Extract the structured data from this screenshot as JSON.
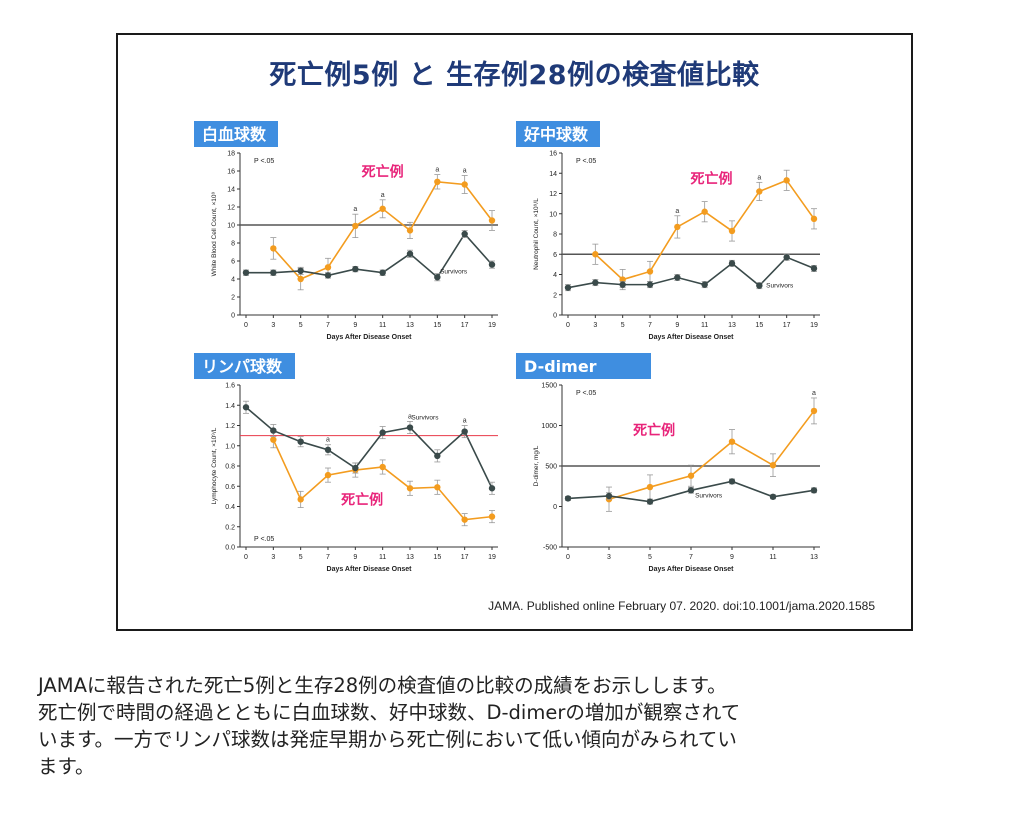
{
  "slide": {
    "title": "死亡例5例 と 生存例28例の検査値比較",
    "citation": "JAMA. Published online  February 07. 2020. doi:10.1001/jama.2020.1585"
  },
  "caption": [
    "JAMAに報告された死亡5例と生存28例の検査値の比較の成績をお示しします。",
    "死亡例で時間の経過とともに白血球数、好中球数、D-dimerの増加が観察されて",
    "います。一方でリンパ球数は発症早期から死亡例において低い傾向がみられてい",
    "ます。"
  ],
  "colors": {
    "title": "#1f3a78",
    "label_bg": "#3f8ee0",
    "nonsurvivors": "#f39c1f",
    "survivors": "#3a4a4a",
    "nonsurvivor_label": "#e8247a",
    "reference_line": "#555555",
    "reference_line_lymph": "#e83a4a"
  },
  "chart_data": [
    {
      "id": "wbc",
      "type": "line",
      "label": "白血球数",
      "ylabel": "White Blood Cell Count, ×10⁹",
      "xlabel": "Days After Disease Onset",
      "ylim": [
        0,
        18
      ],
      "yticks": [
        0,
        2,
        4,
        6,
        8,
        10,
        12,
        14,
        16,
        18
      ],
      "xticks": [
        0,
        3,
        5,
        7,
        9,
        11,
        13,
        15,
        17,
        19
      ],
      "pnote": "P <.05",
      "reference_line": 10,
      "series": [
        {
          "name": "死亡例",
          "role": "nonsurvivors",
          "x": [
            3,
            5,
            7,
            9,
            11,
            13,
            15,
            17,
            19
          ],
          "values": [
            7.4,
            4.0,
            5.3,
            9.9,
            11.8,
            9.4,
            14.8,
            14.5,
            10.5
          ],
          "err": [
            1.2,
            1.2,
            1.0,
            1.3,
            1.0,
            0.9,
            0.8,
            1.0,
            1.1
          ]
        },
        {
          "name": "Survivors",
          "role": "survivors",
          "x": [
            0,
            3,
            5,
            7,
            9,
            11,
            13,
            15,
            17,
            19
          ],
          "values": [
            4.7,
            4.7,
            4.9,
            4.4,
            5.1,
            4.7,
            6.8,
            4.2,
            9.0,
            5.6
          ],
          "err": [
            0.3,
            0.3,
            0.4,
            0.3,
            0.3,
            0.3,
            0.4,
            0.4,
            0.4,
            0.4
          ]
        }
      ],
      "significance_markers": [
        9,
        11,
        15,
        17
      ],
      "nonsurvivor_label_pos": [
        11,
        15.4
      ],
      "survivor_label_pos": [
        15.2,
        4.6
      ]
    },
    {
      "id": "neutrophil",
      "type": "line",
      "label": "好中球数",
      "ylabel": "Neutrophil Count, ×10⁹/L",
      "xlabel": "Days After Disease Onset",
      "ylim": [
        0,
        16
      ],
      "yticks": [
        0,
        2,
        4,
        6,
        8,
        10,
        12,
        14,
        16
      ],
      "xticks": [
        0,
        3,
        5,
        7,
        9,
        11,
        13,
        15,
        17,
        19
      ],
      "pnote": "P <.05",
      "reference_line": 6,
      "series": [
        {
          "name": "死亡例",
          "role": "nonsurvivors",
          "x": [
            3,
            5,
            7,
            9,
            11,
            13,
            15,
            17,
            19
          ],
          "values": [
            6.0,
            3.5,
            4.3,
            8.7,
            10.2,
            8.3,
            12.2,
            13.3,
            9.5
          ],
          "err": [
            1.0,
            1.0,
            1.0,
            1.1,
            1.0,
            1.0,
            0.9,
            1.0,
            1.0
          ]
        },
        {
          "name": "Survivors",
          "role": "survivors",
          "x": [
            0,
            3,
            5,
            7,
            9,
            11,
            13,
            15,
            17,
            19
          ],
          "values": [
            2.7,
            3.2,
            3.0,
            3.0,
            3.7,
            3.0,
            5.1,
            2.9,
            5.7,
            4.6
          ],
          "err": [
            0.3,
            0.3,
            0.3,
            0.3,
            0.3,
            0.3,
            0.3,
            0.3,
            0.3,
            0.3
          ]
        }
      ],
      "significance_markers": [
        9,
        15
      ],
      "nonsurvivor_label_pos": [
        11.5,
        13.0
      ],
      "survivor_label_pos": [
        15.5,
        2.7
      ]
    },
    {
      "id": "lymphocyte",
      "type": "line",
      "label": "リンパ球数",
      "ylabel": "Lymphocyte Count, ×10⁹/L",
      "xlabel": "Days After Disease Onset",
      "ylim": [
        0,
        1.6
      ],
      "yticks": [
        0,
        0.2,
        0.4,
        0.6,
        0.8,
        1.0,
        1.2,
        1.4,
        1.6
      ],
      "xticks": [
        0,
        3,
        5,
        7,
        9,
        11,
        13,
        15,
        17,
        19
      ],
      "pnote": "P <.05",
      "reference_line": 1.1,
      "reference_color": "reference_line_lymph",
      "series": [
        {
          "name": "死亡例",
          "role": "nonsurvivors",
          "x": [
            3,
            5,
            7,
            9,
            11,
            13,
            15,
            17,
            19
          ],
          "values": [
            1.06,
            0.47,
            0.71,
            0.76,
            0.79,
            0.58,
            0.59,
            0.27,
            0.3
          ],
          "err": [
            0.08,
            0.08,
            0.07,
            0.07,
            0.07,
            0.07,
            0.07,
            0.06,
            0.06
          ]
        },
        {
          "name": "Survivors",
          "role": "survivors",
          "x": [
            0,
            3,
            5,
            7,
            9,
            11,
            13,
            15,
            17,
            19
          ],
          "values": [
            1.38,
            1.15,
            1.04,
            0.96,
            0.78,
            1.13,
            1.18,
            0.9,
            1.14,
            0.58
          ],
          "err": [
            0.06,
            0.06,
            0.05,
            0.05,
            0.05,
            0.06,
            0.06,
            0.06,
            0.06,
            0.06
          ]
        }
      ],
      "significance_markers": [
        7,
        13,
        17
      ],
      "nonsurvivor_label_pos": [
        9.5,
        0.42
      ],
      "survivor_label_pos": [
        13.1,
        1.26
      ]
    },
    {
      "id": "ddimer",
      "type": "line",
      "label": "D-dimer",
      "ylabel": "D-dimer, mg/L",
      "xlabel": "Days After Disease Onset",
      "ylim": [
        -500,
        1500
      ],
      "yticks": [
        -500,
        0,
        500,
        1000,
        1500
      ],
      "xticks": [
        0,
        3,
        5,
        7,
        9,
        11,
        13
      ],
      "pnote": "P <.05",
      "reference_line": 500,
      "series": [
        {
          "name": "死亡例",
          "role": "nonsurvivors",
          "x": [
            3,
            5,
            7,
            9,
            11,
            13
          ],
          "values": [
            90,
            240,
            380,
            800,
            510,
            1180
          ],
          "err": [
            150,
            150,
            130,
            150,
            140,
            160
          ]
        },
        {
          "name": "Survivors",
          "role": "survivors",
          "x": [
            0,
            3,
            5,
            7,
            9,
            11,
            13
          ],
          "values": [
            100,
            130,
            60,
            200,
            310,
            120,
            200
          ],
          "err": [
            25,
            40,
            30,
            35,
            30,
            25,
            30
          ]
        }
      ],
      "significance_markers": [
        13
      ],
      "nonsurvivor_label_pos": [
        5.2,
        880
      ],
      "survivor_label_pos": [
        7.2,
        110
      ]
    }
  ]
}
